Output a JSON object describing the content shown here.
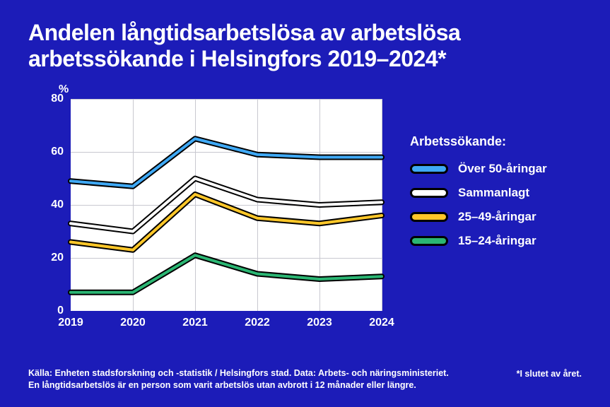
{
  "title_line1": "Andelen långtidsarbetslösa av arbetslösa",
  "title_line2": "arbetssökande i Helsingfors 2019–2024*",
  "ylabel": "%",
  "background_color": "#1c1cb8",
  "plot_background": "#ffffff",
  "grid_color": "#c8c8d0",
  "text_color": "#ffffff",
  "chart": {
    "type": "line",
    "categories": [
      "2019",
      "2020",
      "2021",
      "2022",
      "2023",
      "2024"
    ],
    "ylim": [
      0,
      80
    ],
    "ytick_step": 20,
    "yticks": [
      "0",
      "20",
      "40",
      "60",
      "80"
    ],
    "line_outline_color": "#000000",
    "line_outline_width": 8,
    "line_inner_width": 4,
    "series": [
      {
        "name": "Över 50-åringar",
        "color": "#3fa9f5",
        "values": [
          49,
          47,
          65,
          59,
          58,
          58
        ]
      },
      {
        "name": "Sammanlagt",
        "color": "#ffffff",
        "values": [
          33,
          30,
          50,
          42,
          40,
          41
        ]
      },
      {
        "name": "25–49-åringar",
        "color": "#ffc729",
        "values": [
          26,
          23,
          44,
          35,
          33,
          36
        ]
      },
      {
        "name": "15–24-åringar",
        "color": "#2bb673",
        "values": [
          7,
          7,
          21,
          14,
          12,
          13
        ]
      }
    ]
  },
  "legend_title": "Arbetssökande:",
  "footer_line1": "Källa: Enheten stadsforskning och -statistik / Helsingfors stad. Data: Arbets- och näringsministeriet.",
  "footer_line2": "En långtidsarbetslös är en person som varit arbetslös utan avbrott i 12 månader eller längre.",
  "footnote_right": "*I slutet av året."
}
